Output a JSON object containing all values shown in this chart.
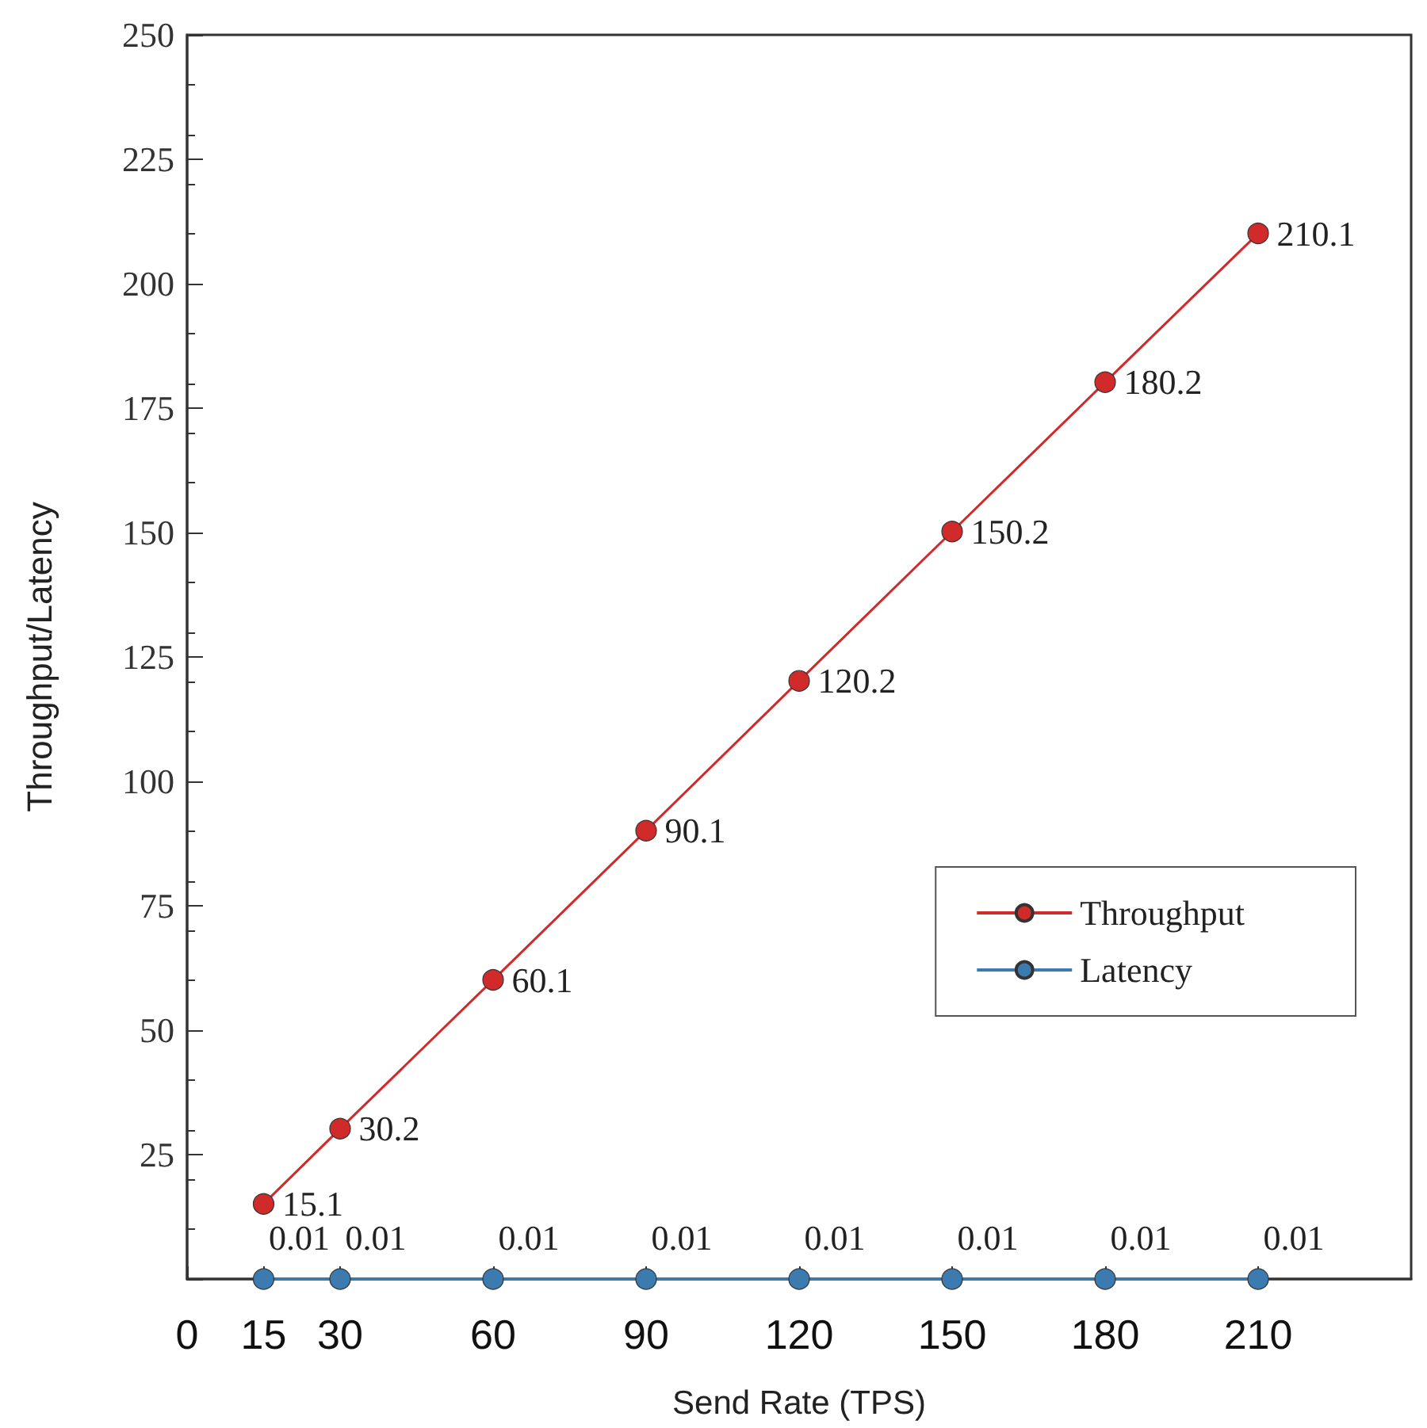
{
  "chart_data": {
    "type": "line",
    "xlabel": "Send Rate (TPS)",
    "ylabel": "Throughput/Latency",
    "x": [
      15,
      30,
      60,
      90,
      120,
      150,
      180,
      210
    ],
    "series": [
      {
        "name": "Throughput",
        "color": "#d02a2a",
        "values": [
          15.1,
          30.2,
          60.1,
          90.1,
          120.2,
          150.2,
          180.2,
          210.1
        ]
      },
      {
        "name": "Latency",
        "color": "#3b7bb0",
        "values": [
          0.01,
          0.01,
          0.01,
          0.01,
          0.01,
          0.01,
          0.01,
          0.01
        ]
      }
    ],
    "xlim": [
      0,
      240
    ],
    "xticks": [
      0,
      15,
      30,
      60,
      90,
      120,
      150,
      180,
      210
    ],
    "ylim": [
      0,
      250
    ],
    "yticks": [
      {
        "value": 0,
        "label": null
      },
      25,
      50,
      75,
      100,
      125,
      150,
      175,
      200,
      225,
      250
    ],
    "data_labels": true,
    "marker": "circle",
    "line_style": "solid",
    "grid": false,
    "legend": "right"
  }
}
